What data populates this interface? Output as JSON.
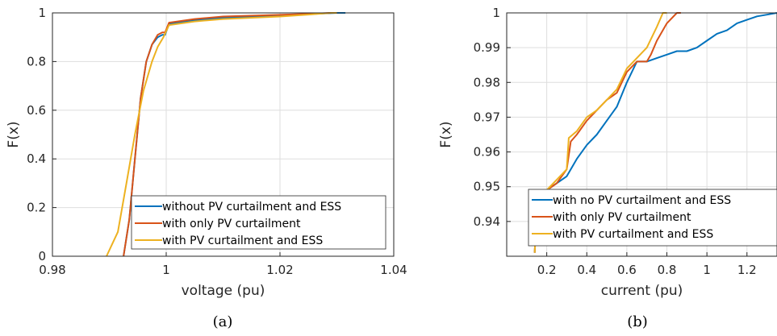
{
  "chart_data": [
    {
      "type": "line",
      "caption": "(a)",
      "xlabel": "voltage (pu)",
      "ylabel": "F(x)",
      "xlim": [
        0.98,
        1.04
      ],
      "ylim": [
        0,
        1
      ],
      "xticks": [
        0.98,
        1,
        1.02,
        1.04
      ],
      "xtick_labels": [
        "0.98",
        "1",
        "1.02",
        "1.04"
      ],
      "yticks": [
        0,
        0.2,
        0.4,
        0.6,
        0.8,
        1
      ],
      "ytick_labels": [
        "0",
        "0.2",
        "0.4",
        "0.6",
        "0.8",
        "1"
      ],
      "grid": true,
      "legend_position": "bottom-right",
      "series": [
        {
          "name": "without PV curtailment and ESS",
          "color": "#0072BD",
          "x": [
            0.9925,
            0.9935,
            0.9945,
            0.9955,
            0.9965,
            0.9975,
            0.9985,
            0.9993,
            0.9998,
            1.0005,
            1.005,
            1.01,
            1.02,
            1.025,
            1.03,
            1.0315
          ],
          "y": [
            0.0,
            0.15,
            0.4,
            0.65,
            0.8,
            0.87,
            0.9,
            0.91,
            0.91,
            0.955,
            0.97,
            0.98,
            0.99,
            0.995,
            1.0,
            1.0
          ]
        },
        {
          "name": "with only PV curtailment",
          "color": "#D95319",
          "x": [
            0.9925,
            0.9935,
            0.9945,
            0.9955,
            0.9965,
            0.9975,
            0.9985,
            0.9993,
            0.9998,
            1.0005,
            1.005,
            1.01,
            1.02,
            1.025,
            1.029,
            1.03
          ],
          "y": [
            0.0,
            0.15,
            0.4,
            0.65,
            0.8,
            0.87,
            0.91,
            0.92,
            0.92,
            0.96,
            0.975,
            0.985,
            0.992,
            0.996,
            1.0,
            1.0
          ]
        },
        {
          "name": "with PV curtailment and ESS",
          "color": "#EDB120",
          "x": [
            0.9895,
            0.9915,
            0.993,
            0.9945,
            0.996,
            0.9975,
            0.9985,
            0.9995,
            1.0005,
            1.005,
            1.01,
            1.02,
            1.025,
            1.029,
            1.03
          ],
          "y": [
            0.0,
            0.1,
            0.3,
            0.5,
            0.68,
            0.8,
            0.86,
            0.9,
            0.95,
            0.965,
            0.975,
            0.985,
            0.993,
            1.0,
            1.0
          ]
        }
      ]
    },
    {
      "type": "line",
      "caption": "(b)",
      "xlabel": "current (pu)",
      "ylabel": "F(x)",
      "xlim": [
        0,
        1.35
      ],
      "ylim": [
        0.93,
        1
      ],
      "xticks": [
        0.2,
        0.4,
        0.6,
        0.8,
        1,
        1.2
      ],
      "xtick_labels": [
        "0.2",
        "0.4",
        "0.6",
        "0.8",
        "1",
        "1.2"
      ],
      "yticks": [
        0.94,
        0.95,
        0.96,
        0.97,
        0.98,
        0.99,
        1
      ],
      "ytick_labels": [
        "0.94",
        "0.95",
        "0.96",
        "0.97",
        "0.98",
        "0.99",
        "1"
      ],
      "grid": true,
      "legend_position": "bottom-right",
      "series": [
        {
          "name": "with no PV curtailment and ESS",
          "color": "#0072BD",
          "x": [
            0.14,
            0.145,
            0.16,
            0.18,
            0.2,
            0.25,
            0.3,
            0.35,
            0.4,
            0.45,
            0.5,
            0.55,
            0.6,
            0.65,
            0.7,
            0.75,
            0.8,
            0.85,
            0.9,
            0.95,
            1.0,
            1.05,
            1.1,
            1.15,
            1.2,
            1.25,
            1.3,
            1.35
          ],
          "y": [
            0.931,
            0.938,
            0.943,
            0.947,
            0.949,
            0.951,
            0.953,
            0.958,
            0.962,
            0.965,
            0.969,
            0.973,
            0.98,
            0.986,
            0.986,
            0.987,
            0.988,
            0.989,
            0.989,
            0.99,
            0.992,
            0.994,
            0.995,
            0.997,
            0.998,
            0.999,
            0.9995,
            1.0
          ]
        },
        {
          "name": "with only PV curtailment",
          "color": "#D95319",
          "x": [
            0.14,
            0.145,
            0.16,
            0.18,
            0.2,
            0.25,
            0.3,
            0.32,
            0.35,
            0.4,
            0.45,
            0.5,
            0.55,
            0.6,
            0.65,
            0.7,
            0.72,
            0.75,
            0.8,
            0.85,
            0.87
          ],
          "y": [
            0.931,
            0.938,
            0.943,
            0.947,
            0.949,
            0.951,
            0.955,
            0.963,
            0.965,
            0.969,
            0.972,
            0.975,
            0.977,
            0.983,
            0.986,
            0.986,
            0.988,
            0.992,
            0.997,
            1.0,
            1.0
          ]
        },
        {
          "name": "with PV curtailment and ESS",
          "color": "#EDB120",
          "x": [
            0.14,
            0.145,
            0.16,
            0.18,
            0.2,
            0.25,
            0.3,
            0.31,
            0.35,
            0.4,
            0.45,
            0.5,
            0.55,
            0.6,
            0.65,
            0.7,
            0.75,
            0.78,
            0.8
          ],
          "y": [
            0.931,
            0.938,
            0.943,
            0.947,
            0.949,
            0.952,
            0.955,
            0.964,
            0.966,
            0.97,
            0.972,
            0.975,
            0.978,
            0.984,
            0.987,
            0.99,
            0.996,
            1.0,
            1.0
          ]
        }
      ]
    }
  ]
}
